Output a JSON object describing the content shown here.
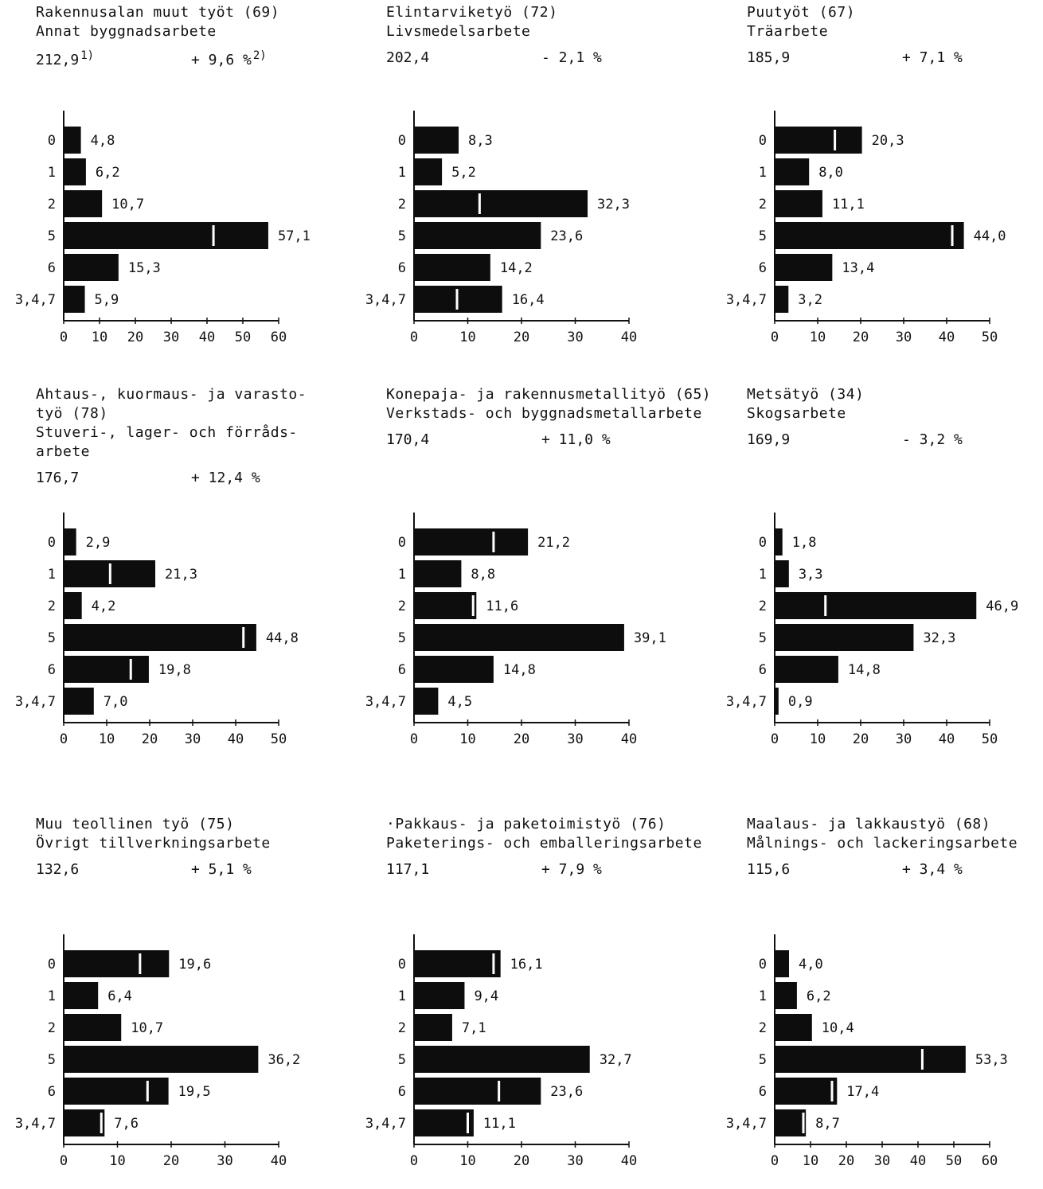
{
  "chart_data": [
    {
      "type": "bar",
      "title_lines": [
        "Rakennusalan muut työt (69)",
        "Annat byggnadsarbete"
      ],
      "total": "212,9",
      "total_note": "1)",
      "change": "+ 9,6 %",
      "change_note": "2)",
      "categories": [
        "0",
        "1",
        "2",
        "5",
        "6",
        "3,4,7"
      ],
      "values": [
        4.8,
        6.2,
        10.7,
        57.1,
        15.3,
        5.9
      ],
      "value_labels": [
        "4,8",
        "6,2",
        "10,7",
        "57,1",
        "15,3",
        "5,9"
      ],
      "marker_values": [
        null,
        null,
        null,
        41.8,
        null,
        null
      ],
      "xticks": [
        0,
        10,
        20,
        30,
        40,
        50,
        60
      ],
      "xlim": [
        0,
        60
      ]
    },
    {
      "type": "bar",
      "title_lines": [
        "Elintarviketyö (72)",
        "Livsmedelsarbete"
      ],
      "total": "202,4",
      "total_note": "",
      "change": "- 2,1 %",
      "change_note": "",
      "categories": [
        "0",
        "1",
        "2",
        "5",
        "6",
        "3,4,7"
      ],
      "values": [
        8.3,
        5.2,
        32.3,
        23.6,
        14.2,
        16.4
      ],
      "value_labels": [
        "8,3",
        "5,2",
        "32,3",
        "23,6",
        "14,2",
        "16,4"
      ],
      "marker_values": [
        null,
        null,
        12.2,
        null,
        null,
        8.0
      ],
      "xticks": [
        0,
        10,
        20,
        30,
        40
      ],
      "xlim": [
        0,
        40
      ]
    },
    {
      "type": "bar",
      "title_lines": [
        "Puutyöt (67)",
        "Träarbete"
      ],
      "total": "185,9",
      "total_note": "",
      "change": "+ 7,1 %",
      "change_note": "",
      "categories": [
        "0",
        "1",
        "2",
        "5",
        "6",
        "3,4,7"
      ],
      "values": [
        20.3,
        8.0,
        11.1,
        44.0,
        13.4,
        3.2
      ],
      "value_labels": [
        "20,3",
        "8,0",
        "11,1",
        "44,0",
        "13,4",
        "3,2"
      ],
      "marker_values": [
        14.0,
        null,
        null,
        41.3,
        null,
        null
      ],
      "xticks": [
        0,
        10,
        20,
        30,
        40,
        50
      ],
      "xlim": [
        0,
        50
      ]
    },
    {
      "type": "bar",
      "title_lines": [
        "Ahtaus-, kuormaus- ja varasto-",
        "työ (78)",
        "Stuveri-, lager- och förråds-",
        "arbete"
      ],
      "total": "176,7",
      "total_note": "",
      "change": "+ 12,4 %",
      "change_note": "",
      "categories": [
        "0",
        "1",
        "2",
        "5",
        "6",
        "3,4,7"
      ],
      "values": [
        2.9,
        21.3,
        4.2,
        44.8,
        19.8,
        7.0
      ],
      "value_labels": [
        "2,9",
        "21,3",
        "4,2",
        "44,8",
        "19,8",
        "7,0"
      ],
      "marker_values": [
        null,
        10.8,
        null,
        41.8,
        15.6,
        null
      ],
      "xticks": [
        0,
        10,
        20,
        30,
        40,
        50
      ],
      "xlim": [
        0,
        50
      ]
    },
    {
      "type": "bar",
      "title_lines": [
        "Konepaja- ja rakennusmetallityö (65)",
        "Verkstads- och byggnadsmetallarbete"
      ],
      "total": "170,4",
      "total_note": "",
      "change": "+ 11,0 %",
      "change_note": "",
      "categories": [
        "0",
        "1",
        "2",
        "5",
        "6",
        "3,4,7"
      ],
      "values": [
        21.2,
        8.8,
        11.6,
        39.1,
        14.8,
        4.5
      ],
      "value_labels": [
        "21,2",
        "8,8",
        "11,6",
        "39,1",
        "14,8",
        "4,5"
      ],
      "marker_values": [
        14.8,
        null,
        11.0,
        null,
        null,
        null
      ],
      "xticks": [
        0,
        10,
        20,
        30,
        40
      ],
      "xlim": [
        0,
        40
      ]
    },
    {
      "type": "bar",
      "title_lines": [
        "Metsätyö (34)",
        "Skogsarbete"
      ],
      "total": "169,9",
      "total_note": "",
      "change": "- 3,2 %",
      "change_note": "",
      "categories": [
        "0",
        "1",
        "2",
        "5",
        "6",
        "3,4,7"
      ],
      "values": [
        1.8,
        3.3,
        46.9,
        32.3,
        14.8,
        0.9
      ],
      "value_labels": [
        "1,8",
        "3,3",
        "46,9",
        "32,3",
        "14,8",
        "0,9"
      ],
      "marker_values": [
        null,
        null,
        11.8,
        null,
        null,
        null
      ],
      "xticks": [
        0,
        10,
        20,
        30,
        40,
        50
      ],
      "xlim": [
        0,
        50
      ]
    },
    {
      "type": "bar",
      "title_lines": [
        "Muu teollinen työ (75)",
        "Övrigt tillverkningsarbete"
      ],
      "total": "132,6",
      "total_note": "",
      "change": "+ 5,1 %",
      "change_note": "",
      "categories": [
        "0",
        "1",
        "2",
        "5",
        "6",
        "3,4,7"
      ],
      "values": [
        19.6,
        6.4,
        10.7,
        36.2,
        19.5,
        7.6
      ],
      "value_labels": [
        "19,6",
        "6,4",
        "10,7",
        "36,2",
        "19,5",
        "7,6"
      ],
      "marker_values": [
        14.2,
        null,
        null,
        null,
        15.6,
        7.0
      ],
      "xticks": [
        0,
        10,
        20,
        30,
        40
      ],
      "xlim": [
        0,
        40
      ]
    },
    {
      "type": "bar",
      "title_lines": [
        "·Pakkaus- ja paketoimistyö (76)",
        "Paketerings- och emballeringsarbete"
      ],
      "total": "117,1",
      "total_note": "",
      "change": "+ 7,9 %",
      "change_note": "",
      "categories": [
        "0",
        "1",
        "2",
        "5",
        "6",
        "3,4,7"
      ],
      "values": [
        16.1,
        9.4,
        7.1,
        32.7,
        23.6,
        11.1
      ],
      "value_labels": [
        "16,1",
        "9,4",
        "7,1",
        "32,7",
        "23,6",
        "11,1"
      ],
      "marker_values": [
        14.8,
        null,
        null,
        null,
        15.8,
        10.0
      ],
      "xticks": [
        0,
        10,
        20,
        30,
        40
      ],
      "xlim": [
        0,
        40
      ]
    },
    {
      "type": "bar",
      "title_lines": [
        "Maalaus- ja lakkaustyö (68)",
        "Målnings- och lackeringsarbete"
      ],
      "total": "115,6",
      "total_note": "",
      "change": "+ 3,4 %",
      "change_note": "",
      "categories": [
        "0",
        "1",
        "2",
        "5",
        "6",
        "3,4,7"
      ],
      "values": [
        4.0,
        6.2,
        10.4,
        53.3,
        17.4,
        8.7
      ],
      "value_labels": [
        "4,0",
        "6,2",
        "10,4",
        "53,3",
        "17,4",
        "8,7"
      ],
      "marker_values": [
        null,
        null,
        null,
        41.2,
        16.0,
        8.0
      ],
      "xticks": [
        0,
        10,
        20,
        30,
        40,
        50,
        60
      ],
      "xlim": [
        0,
        60
      ]
    }
  ]
}
